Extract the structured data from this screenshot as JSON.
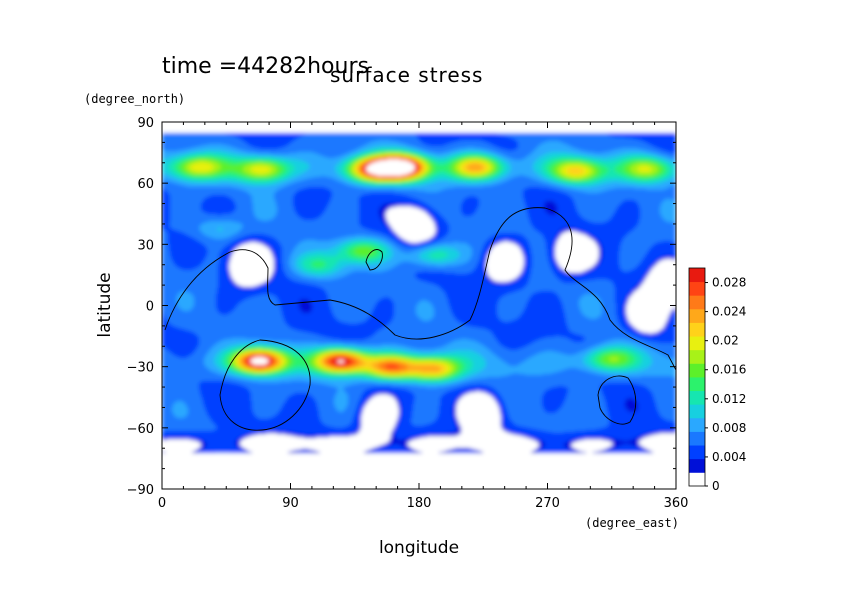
{
  "chart_data": {
    "type": "heatmap",
    "time_label": "time =44282hours",
    "title": "surface stress",
    "xlabel": "longitude",
    "ylabel": "latitude",
    "xunit": "(degree_east)",
    "yunit": "(degree_north)",
    "xlim": [
      0,
      360
    ],
    "ylim": [
      -90,
      90
    ],
    "xticks": [
      "0",
      "90",
      "180",
      "270",
      "360"
    ],
    "yticks": [
      "90",
      "60",
      "30",
      "0",
      "−30",
      "−60",
      "−90"
    ],
    "xtick_values": [
      0,
      90,
      180,
      270,
      360
    ],
    "ytick_values": [
      90,
      60,
      30,
      0,
      -30,
      -60,
      -90
    ],
    "data_lat_range": [
      -72,
      85
    ],
    "colorbar": {
      "min": 0,
      "max": 0.03,
      "tick_labels": [
        "0",
        "0.004",
        "0.008",
        "0.012",
        "0.016",
        "0.02",
        "0.024",
        "0.028"
      ],
      "tick_values": [
        0,
        0.004,
        0.008,
        0.012,
        0.016,
        0.02,
        0.024,
        0.028
      ],
      "colors": [
        "#ffffff",
        "#0010d8",
        "#0040ff",
        "#1a78ff",
        "#2aa8ff",
        "#17d0e0",
        "#16e6b0",
        "#2cf26c",
        "#5cf02a",
        "#a8f218",
        "#e8f010",
        "#ffd21a",
        "#ffa81a",
        "#ff7a18",
        "#ff4414",
        "#e81a10"
      ]
    },
    "features": [
      {
        "lon": 70,
        "lat": 67,
        "value": 0.018
      },
      {
        "lon": 25,
        "lat": 68,
        "value": 0.017
      },
      {
        "lon": 148,
        "lat": 67,
        "value": 0.026
      },
      {
        "lon": 168,
        "lat": 68,
        "value": 0.032
      },
      {
        "lon": 220,
        "lat": 68,
        "value": 0.021
      },
      {
        "lon": 290,
        "lat": 66,
        "value": 0.019
      },
      {
        "lon": 340,
        "lat": 67,
        "value": 0.016
      },
      {
        "lon": 68,
        "lat": -27,
        "value": 0.032
      },
      {
        "lon": 125,
        "lat": -27,
        "value": 0.03
      },
      {
        "lon": 160,
        "lat": -30,
        "value": 0.024
      },
      {
        "lon": 190,
        "lat": -31,
        "value": 0.022
      },
      {
        "lon": 313,
        "lat": -26,
        "value": 0.015
      },
      {
        "lon": 140,
        "lat": 27,
        "value": 0.016
      },
      {
        "lon": 190,
        "lat": 25,
        "value": 0.014
      },
      {
        "lon": 110,
        "lat": 20,
        "value": 0.012
      },
      {
        "lon": 40,
        "lat": 38,
        "value": 0.01
      }
    ],
    "calm_regions": [
      {
        "lon": 60,
        "lat": 20
      },
      {
        "lon": 178,
        "lat": 40
      },
      {
        "lon": 240,
        "lat": 22
      },
      {
        "lon": 285,
        "lat": 25
      },
      {
        "lon": 355,
        "lat": 10
      },
      {
        "lon": 225,
        "lat": -52
      },
      {
        "lon": 150,
        "lat": -55
      },
      {
        "lon": 340,
        "lat": -5
      }
    ]
  }
}
